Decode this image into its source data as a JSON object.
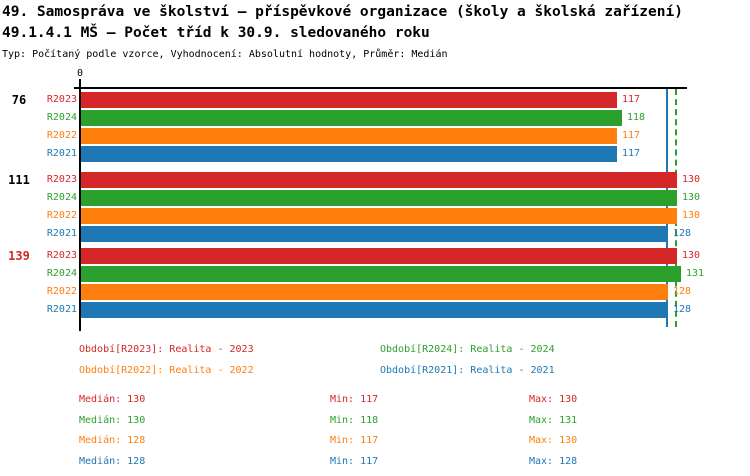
{
  "header": {
    "title_line1": "49. Samospráva ve školství – příspěvkové organizace (školy a školská zařízení)",
    "title_line2": "49.1.4.1 MŠ – Počet tříd k 30.9. sledovaného roku",
    "subtitle": "Typ: Počítaný podle vzorce, Vyhodnocení: Absolutní hodnoty, Průměr: Medián"
  },
  "colors": {
    "r2023": "#d62728",
    "r2024": "#2ca02c",
    "r2022": "#ff7f0e",
    "r2021": "#1f77b4",
    "axis": "#000000",
    "background": "#ffffff",
    "group_label_highlight": "#d62728"
  },
  "chart_data": {
    "type": "bar",
    "orientation": "horizontal",
    "x_axis": {
      "origin_label": "0",
      "min": 0,
      "max": 146,
      "gridlines": false
    },
    "series": [
      {
        "name": "R2023",
        "color": "#d62728",
        "values": [
          117,
          130,
          130
        ]
      },
      {
        "name": "R2024",
        "color": "#2ca02c",
        "values": [
          118,
          130,
          131
        ]
      },
      {
        "name": "R2022",
        "color": "#ff7f0e",
        "values": [
          117,
          130,
          128
        ]
      },
      {
        "name": "R2021",
        "color": "#1f77b4",
        "values": [
          117,
          128,
          128
        ]
      }
    ],
    "groups": [
      {
        "label": "76",
        "label_color": "#000000",
        "bars": [
          {
            "series": "R2023",
            "value": 117
          },
          {
            "series": "R2024",
            "value": 118
          },
          {
            "series": "R2022",
            "value": 117
          },
          {
            "series": "R2021",
            "value": 117
          }
        ]
      },
      {
        "label": "111",
        "label_color": "#000000",
        "bars": [
          {
            "series": "R2023",
            "value": 130
          },
          {
            "series": "R2024",
            "value": 130
          },
          {
            "series": "R2022",
            "value": 130
          },
          {
            "series": "R2021",
            "value": 128
          }
        ]
      },
      {
        "label": "139",
        "label_color": "#d62728",
        "bars": [
          {
            "series": "R2023",
            "value": 130
          },
          {
            "series": "R2024",
            "value": 131
          },
          {
            "series": "R2022",
            "value": 128
          },
          {
            "series": "R2021",
            "value": 128
          }
        ]
      }
    ],
    "reference_lines": [
      {
        "value": 128,
        "color": "#1f77b4",
        "style": "solid"
      },
      {
        "value": 130,
        "color": "#2ca02c",
        "style": "dashed"
      }
    ]
  },
  "legend": {
    "items": [
      {
        "label": "Období[R2023]: Realita - 2023",
        "color": "#d62728"
      },
      {
        "label": "Období[R2024]: Realita - 2024",
        "color": "#2ca02c"
      },
      {
        "label": "Období[R2022]: Realita - 2022",
        "color": "#ff7f0e"
      },
      {
        "label": "Období[R2021]: Realita - 2021",
        "color": "#1f77b4"
      }
    ]
  },
  "stats": {
    "median_label": "Medián",
    "min_label": "Min",
    "max_label": "Max",
    "rows": [
      {
        "color": "#d62728",
        "median": "130",
        "min": "117",
        "max": "130"
      },
      {
        "color": "#2ca02c",
        "median": "130",
        "min": "118",
        "max": "131"
      },
      {
        "color": "#ff7f0e",
        "median": "128",
        "min": "117",
        "max": "130"
      },
      {
        "color": "#1f77b4",
        "median": "128",
        "min": "117",
        "max": "128"
      }
    ]
  }
}
